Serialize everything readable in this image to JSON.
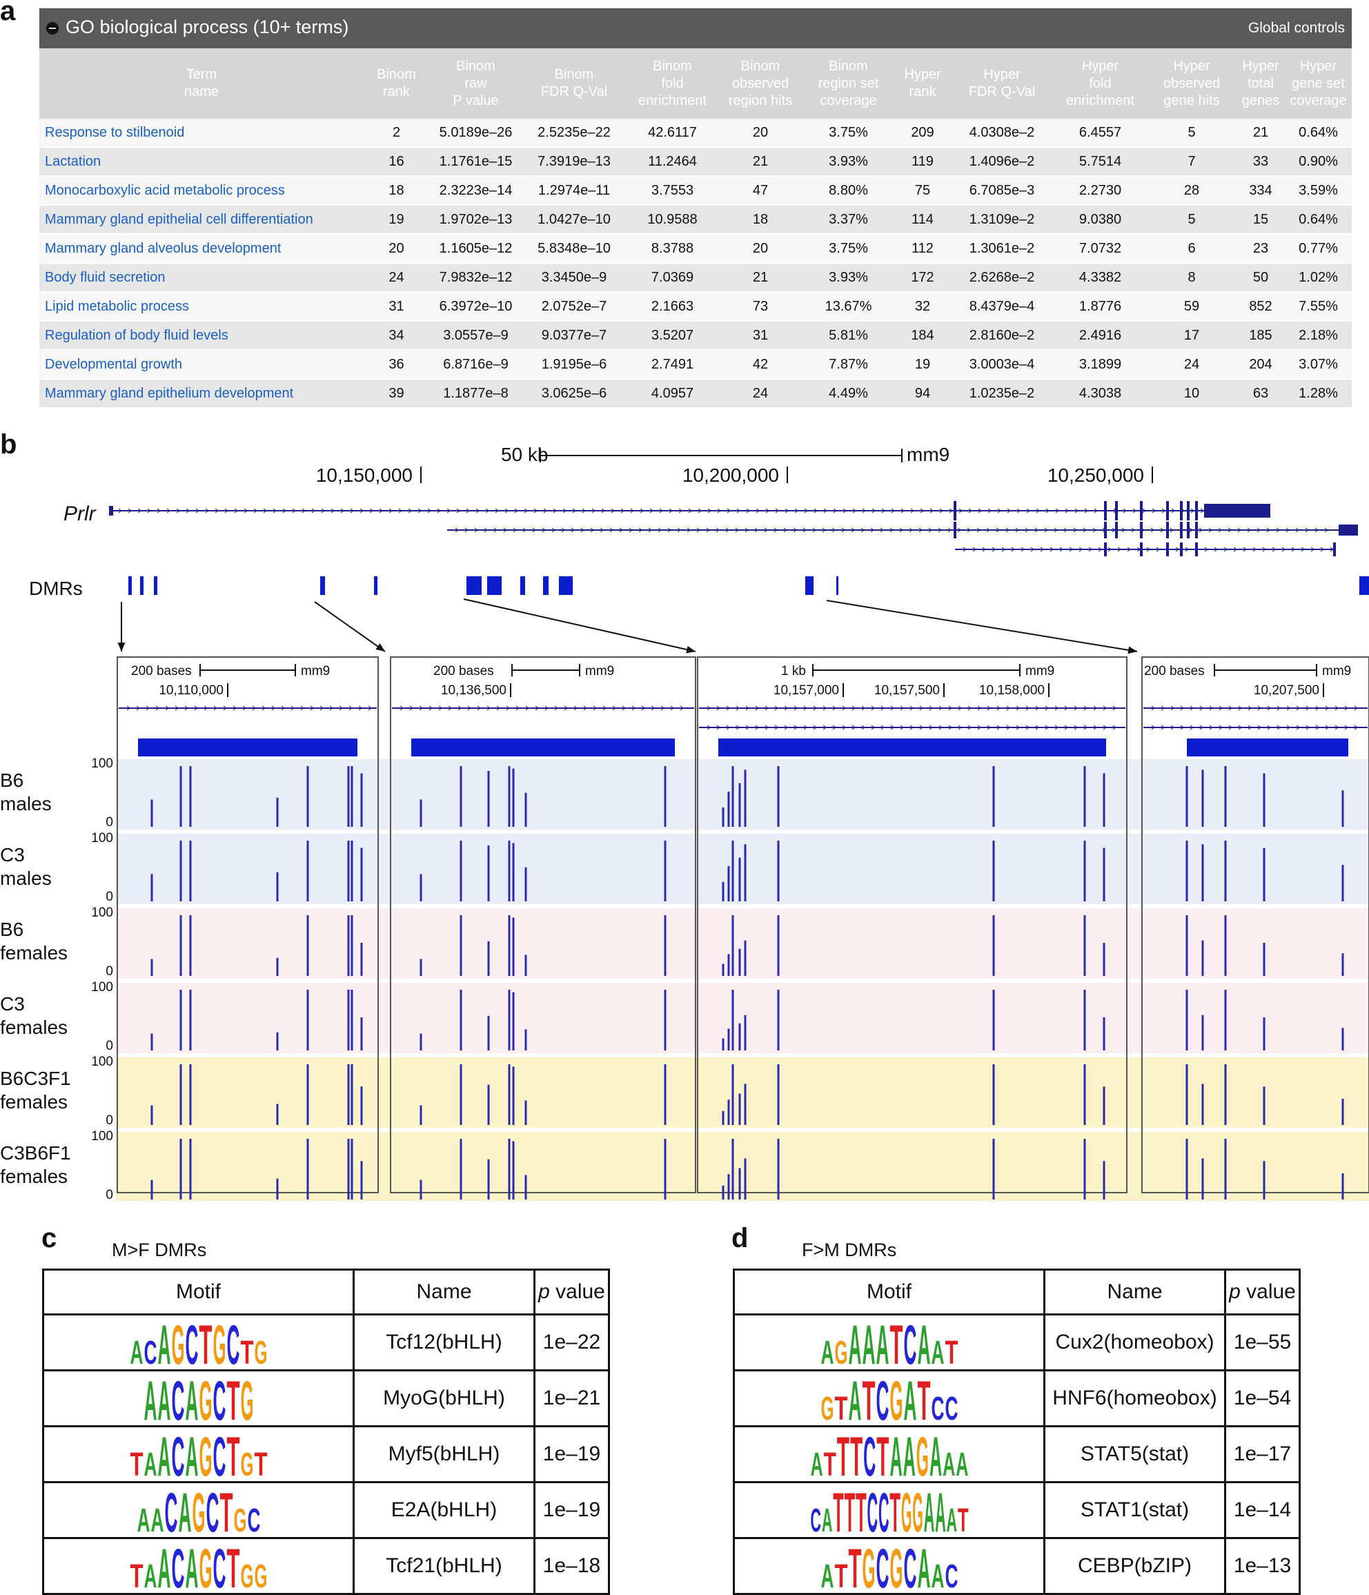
{
  "panel_labels": {
    "a": "a",
    "b": "b",
    "c": "c",
    "d": "d"
  },
  "go_table": {
    "title": "GO biological process (10+ terms)",
    "global_controls": "Global controls",
    "columns": [
      [
        "Term",
        "name"
      ],
      [
        "Binom",
        "rank"
      ],
      [
        "Binom",
        "raw",
        "P value"
      ],
      [
        "Binom",
        "FDR Q-Val"
      ],
      [
        "Binom",
        "fold",
        "enrichment"
      ],
      [
        "Binom",
        "observed",
        "region hits"
      ],
      [
        "Binom",
        "region set",
        "coverage"
      ],
      [
        "Hyper",
        "rank"
      ],
      [
        "Hyper",
        "FDR Q-Val"
      ],
      [
        "Hyper",
        "fold",
        "enrichment"
      ],
      [
        "Hyper",
        "observed",
        "gene hits"
      ],
      [
        "Hyper",
        "total",
        "genes"
      ],
      [
        "Hyper",
        "gene set",
        "coverage"
      ]
    ],
    "rows": [
      [
        "Response to stilbenoid",
        "2",
        "5.0189e–26",
        "2.5235e–22",
        "42.6117",
        "20",
        "3.75%",
        "209",
        "4.0308e–2",
        "6.4557",
        "5",
        "21",
        "0.64%"
      ],
      [
        "Lactation",
        "16",
        "1.1761e–15",
        "7.3919e–13",
        "11.2464",
        "21",
        "3.93%",
        "119",
        "1.4096e–2",
        "5.7514",
        "7",
        "33",
        "0.90%"
      ],
      [
        "Monocarboxylic acid metabolic process",
        "18",
        "2.3223e–14",
        "1.2974e–11",
        "3.7553",
        "47",
        "8.80%",
        "75",
        "6.7085e–3",
        "2.2730",
        "28",
        "334",
        "3.59%"
      ],
      [
        "Mammary gland epithelial cell differentiation",
        "19",
        "1.9702e–13",
        "1.0427e–10",
        "10.9588",
        "18",
        "3.37%",
        "114",
        "1.3109e–2",
        "9.0380",
        "5",
        "15",
        "0.64%"
      ],
      [
        "Mammary gland alveolus development",
        "20",
        "1.1605e–12",
        "5.8348e–10",
        "8.3788",
        "20",
        "3.75%",
        "112",
        "1.3061e–2",
        "7.0732",
        "6",
        "23",
        "0.77%"
      ],
      [
        "Body fluid secretion",
        "24",
        "7.9832e–12",
        "3.3450e–9",
        "7.0369",
        "21",
        "3.93%",
        "172",
        "2.6268e–2",
        "4.3382",
        "8",
        "50",
        "1.02%"
      ],
      [
        "Lipid metabolic process",
        "31",
        "6.3972e–10",
        "2.0752e–7",
        "2.1663",
        "73",
        "13.67%",
        "32",
        "8.4379e–4",
        "1.8776",
        "59",
        "852",
        "7.55%"
      ],
      [
        "Regulation of body fluid levels",
        "34",
        "3.0557e–9",
        "9.0377e–7",
        "3.5207",
        "31",
        "5.81%",
        "184",
        "2.8160e–2",
        "2.4916",
        "17",
        "185",
        "2.18%"
      ],
      [
        "Developmental growth",
        "36",
        "6.8716e–9",
        "1.9195e–6",
        "2.7491",
        "42",
        "7.87%",
        "19",
        "3.0003e–4",
        "3.1899",
        "24",
        "204",
        "3.07%"
      ],
      [
        "Mammary gland epithelium development",
        "39",
        "1.1877e–8",
        "3.0625e–6",
        "4.0957",
        "24",
        "4.49%",
        "94",
        "1.0235e–2",
        "4.3038",
        "10",
        "63",
        "1.28%"
      ]
    ]
  },
  "browser": {
    "scale_label": "50 kb",
    "assembly": "mm9",
    "positions": [
      "10,150,000",
      "10,200,000",
      "10,250,000"
    ],
    "gene_name": "Prlr",
    "dmr_label": "DMRs",
    "track_max": "100",
    "track_min": "0",
    "tracks": [
      {
        "line1": "B6",
        "line2": "males",
        "bg": "#e8edf6"
      },
      {
        "line1": "C3",
        "line2": "males",
        "bg": "#e8edf6"
      },
      {
        "line1": "B6",
        "line2": "females",
        "bg": "#fbeef1"
      },
      {
        "line1": "C3",
        "line2": "females",
        "bg": "#fbeef1"
      },
      {
        "line1": "B6C3F1",
        "line2": "females",
        "bg": "#fbf3c8"
      },
      {
        "line1": "C3B6F1",
        "line2": "females",
        "bg": "#fbf3c8"
      }
    ],
    "zooms": [
      {
        "scale": "200 bases",
        "assembly": "mm9",
        "positions": [
          "10,110,000"
        ]
      },
      {
        "scale": "200 bases",
        "assembly": "mm9",
        "positions": [
          "10,136,500"
        ]
      },
      {
        "scale": "1 kb",
        "assembly": "mm9",
        "positions": [
          "10,157,000",
          "10,157,500",
          "10,158,000"
        ]
      },
      {
        "scale": "200 bases",
        "assembly": "mm9",
        "positions": [
          "10,207,500"
        ]
      }
    ],
    "colors": {
      "gene": "#1c1c8c",
      "dmr": "#0a1ccc",
      "signal": "#2a2ab0"
    }
  },
  "motifs_c": {
    "title": "M>F DMRs",
    "headers": {
      "motif": "Motif",
      "name": "Name",
      "p_prefix": "p",
      "p_suffix": " value"
    },
    "rows": [
      {
        "logo": "ACAGCTGCTG",
        "name": "Tcf12(bHLH)",
        "p": "1e–22"
      },
      {
        "logo": "AACAGCTG",
        "name": "MyoG(bHLH)",
        "p": "1e–21"
      },
      {
        "logo": "TAACAGCTGT",
        "name": "Myf5(bHLH)",
        "p": "1e–19"
      },
      {
        "logo": "AACAGCTGC",
        "name": "E2A(bHLH)",
        "p": "1e–19"
      },
      {
        "logo": "TAACAGCTGG",
        "name": "Tcf21(bHLH)",
        "p": "1e–18"
      }
    ]
  },
  "motifs_d": {
    "title": "F>M DMRs",
    "headers": {
      "motif": "Motif",
      "name": "Name",
      "p_prefix": "p",
      "p_suffix": " value"
    },
    "rows": [
      {
        "logo": "AGAAATCAAT",
        "name": "Cux2(homeobox)",
        "p": "1e–55"
      },
      {
        "logo": "GTATCGATCC",
        "name": "HNF6(homeobox)",
        "p": "1e–54"
      },
      {
        "logo": "ATTTCTAAGAAA",
        "name": "STAT5(stat)",
        "p": "1e–17"
      },
      {
        "logo": "CATTTCCTGGAAAT",
        "name": "STAT1(stat)",
        "p": "1e–14"
      },
      {
        "logo": "ATTGCGCAAC",
        "name": "CEBP(bZIP)",
        "p": "1e–13"
      }
    ]
  }
}
